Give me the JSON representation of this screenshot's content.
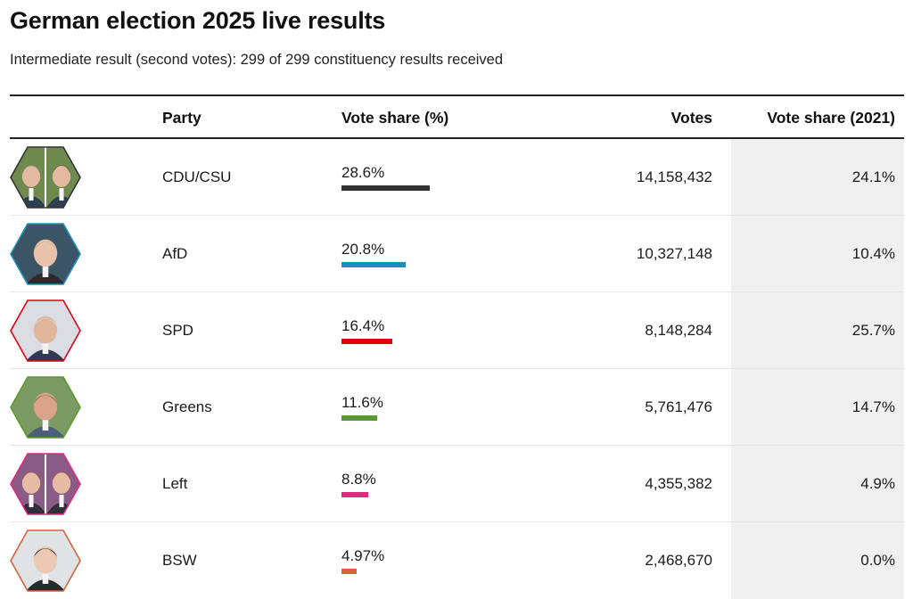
{
  "title": "German election 2025 live results",
  "subtitle": "Intermediate result (second votes): 299 of 299 constituency results received",
  "headers": {
    "party": "Party",
    "share": "Vote share (%)",
    "votes": "Votes",
    "prev": "Vote share (2021)"
  },
  "chart_data": {
    "type": "table",
    "columns": [
      "",
      "Party",
      "Vote share (%)",
      "Votes",
      "Vote share (2021)"
    ],
    "bar_max": 100,
    "rows": [
      {
        "party": "CDU/CSU",
        "share": 28.6,
        "share_label": "28.6%",
        "votes": "14,158,432",
        "prev": "24.1%",
        "color": "#333333",
        "avatar": "cdu-csu-candidates-portrait",
        "portraits": 2,
        "skin": "#e3b9a0",
        "hair": "#8a8a8a",
        "suit": "#2c3e50",
        "bg": "#6f8a4e"
      },
      {
        "party": "AfD",
        "share": 20.8,
        "share_label": "20.8%",
        "votes": "10,327,148",
        "prev": "10.4%",
        "color": "#1f8fb8",
        "avatar": "afd-candidate-portrait",
        "portraits": 1,
        "skin": "#e8c2ab",
        "hair": "#c9b48a",
        "suit": "#2b2b2b",
        "bg": "#3c5566"
      },
      {
        "party": "SPD",
        "share": 16.4,
        "share_label": "16.4%",
        "votes": "8,148,284",
        "prev": "25.7%",
        "color": "#e3000f",
        "avatar": "spd-candidate-portrait",
        "portraits": 1,
        "skin": "#e0b59b",
        "hair": "#d7d7d7",
        "suit": "#2f3b4c",
        "bg": "#d9dde3"
      },
      {
        "party": "Greens",
        "share": 11.6,
        "share_label": "11.6%",
        "votes": "5,761,476",
        "prev": "14.7%",
        "color": "#5a9a2c",
        "avatar": "greens-candidate-portrait",
        "portraits": 1,
        "skin": "#d9a38a",
        "hair": "#7b6a5a",
        "suit": "#4a5d7a",
        "bg": "#7c9a63"
      },
      {
        "party": "Left",
        "share": 8.8,
        "share_label": "8.8%",
        "votes": "4,355,382",
        "prev": "4.9%",
        "color": "#e0287c",
        "avatar": "left-candidates-portrait",
        "portraits": 2,
        "skin": "#e6bca5",
        "hair": "#a15a3e",
        "suit": "#2f2f3a",
        "bg": "#8a5b86"
      },
      {
        "party": "BSW",
        "share": 4.97,
        "share_label": "4.97%",
        "votes": "2,468,670",
        "prev": "0.0%",
        "color": "#d4643a",
        "avatar": "bsw-candidate-portrait",
        "portraits": 1,
        "skin": "#ecc9b5",
        "hair": "#2a2422",
        "suit": "#2a2a2a",
        "bg": "#dfe3e6"
      }
    ]
  }
}
